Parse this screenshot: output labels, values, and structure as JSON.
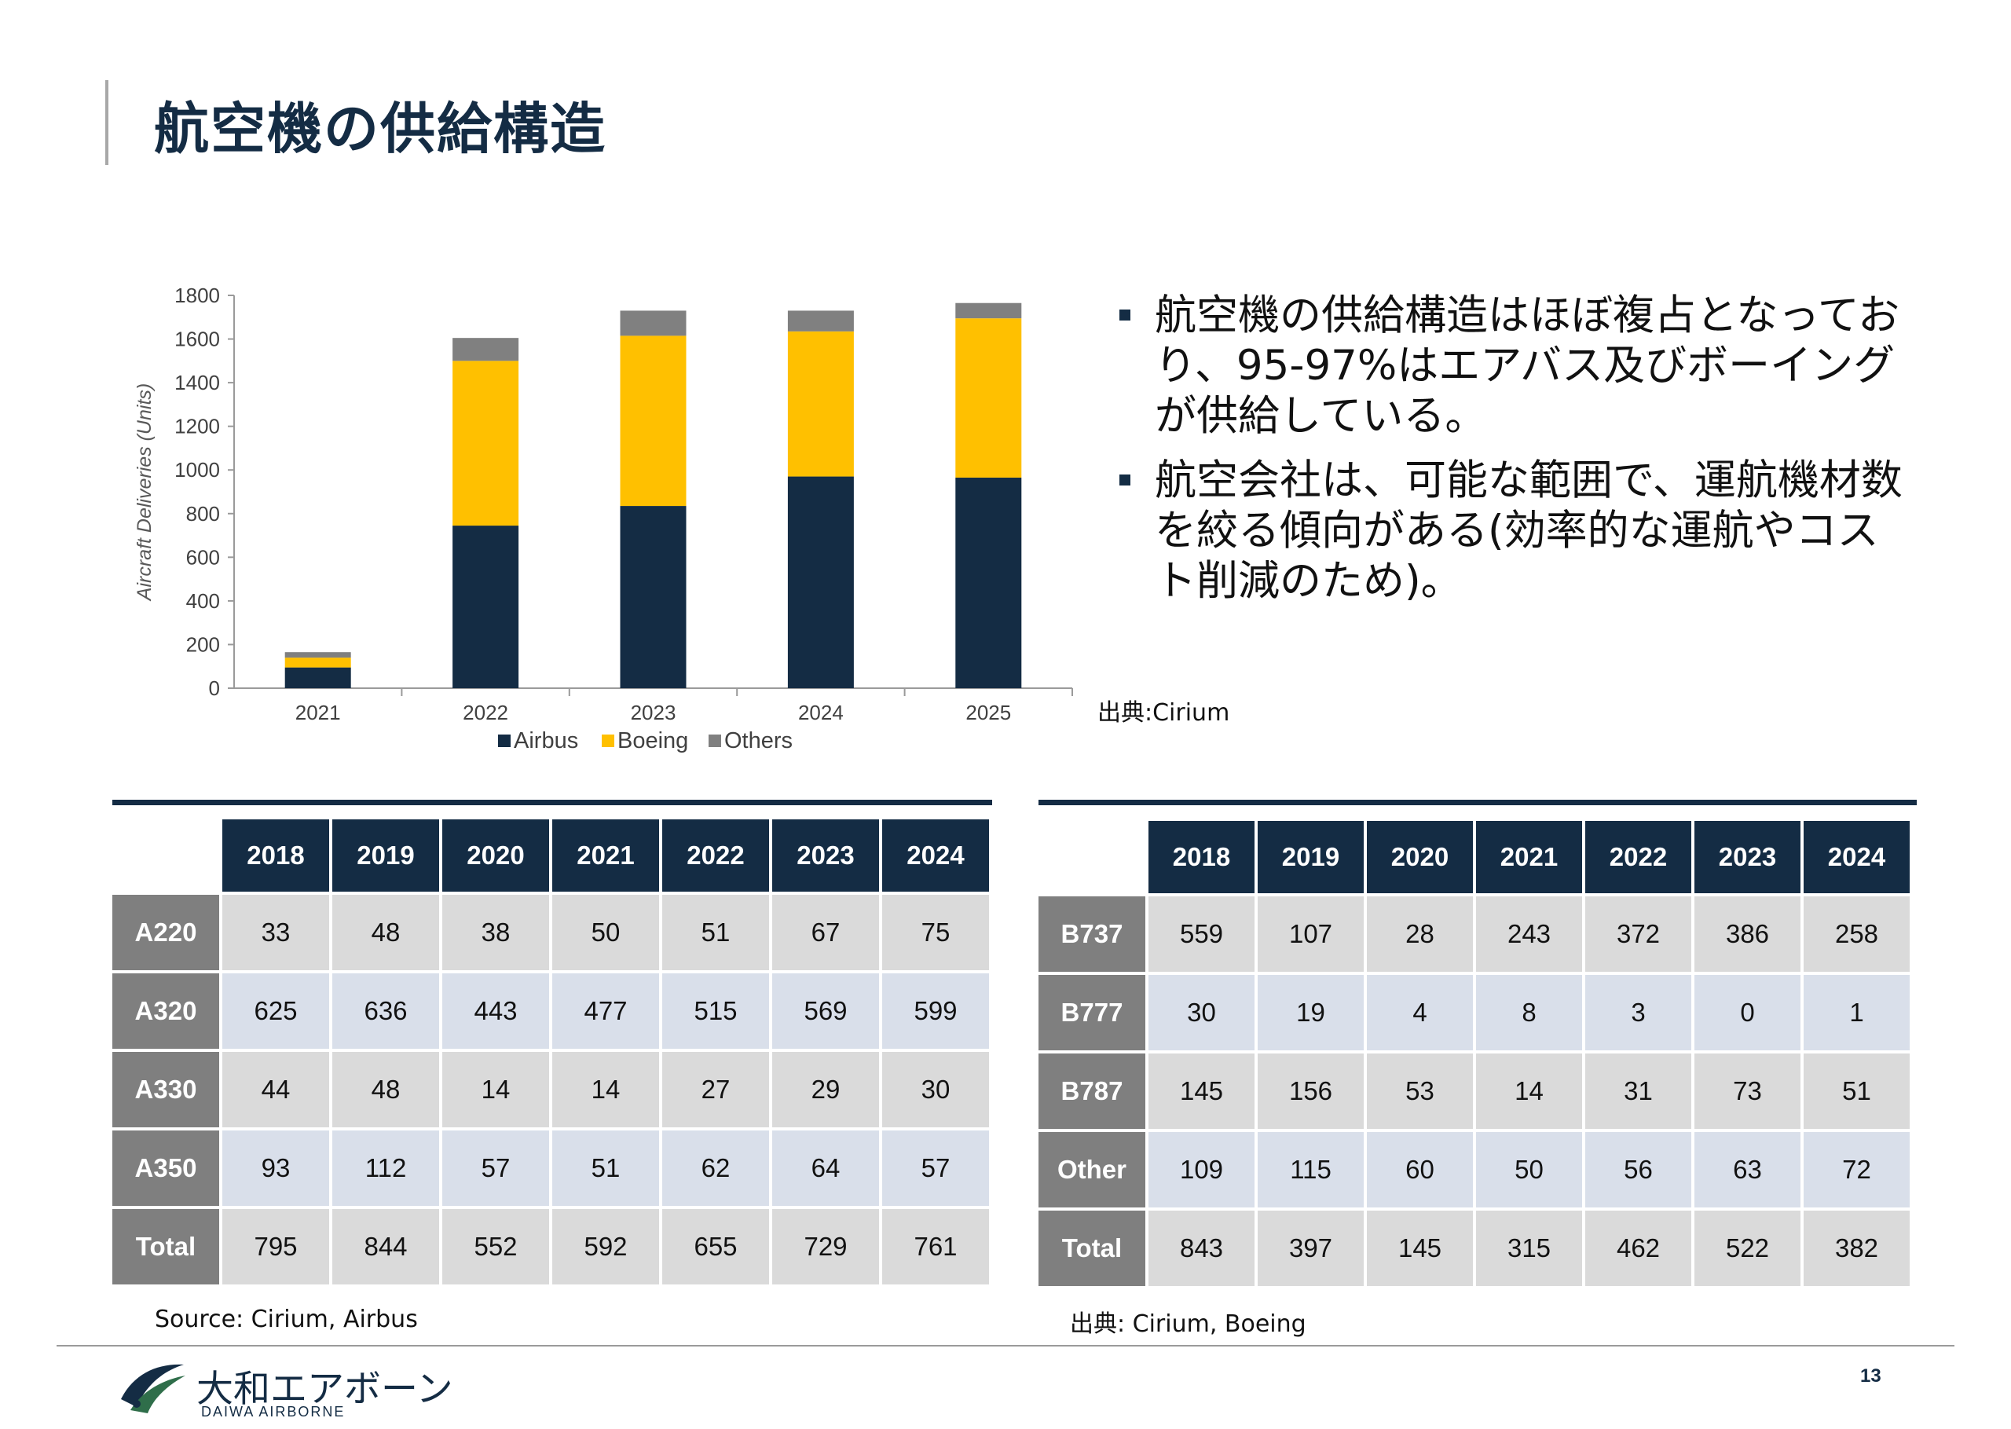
{
  "title": "航空機の供給構造",
  "chart_data": {
    "type": "bar",
    "stacked": true,
    "categories": [
      "2021",
      "2022",
      "2023",
      "2024",
      "2025"
    ],
    "series": [
      {
        "name": "Airbus",
        "values": [
          95,
          745,
          835,
          970,
          965
        ],
        "color": "#142c44"
      },
      {
        "name": "Boeing",
        "values": [
          45,
          755,
          780,
          665,
          730
        ],
        "color": "#ffc000"
      },
      {
        "name": "Others",
        "values": [
          25,
          105,
          115,
          95,
          70
        ],
        "color": "#808080"
      }
    ],
    "ylabel": "Aircraft  Deliveries  (Units)",
    "ylim": [
      0,
      1800
    ],
    "yticks": [
      "0",
      "200",
      "400",
      "600",
      "800",
      "1000",
      "1200",
      "1400",
      "1600",
      "1800"
    ],
    "legend": "bottom",
    "grid": false
  },
  "bullets": [
    "航空機の供給構造はほぼ複占となっており、95-97%はエアバス及びボーイングが供給している。",
    "航空会社は、可能な範囲で、運航機材数を絞る傾向がある(効率的な運航やコスト削減のため)。"
  ],
  "chart_source": "出典:Cirium",
  "airbus_table": {
    "years": [
      "2018",
      "2019",
      "2020",
      "2021",
      "2022",
      "2023",
      "2024"
    ],
    "rows": [
      {
        "label": "A220",
        "values": [
          "33",
          "48",
          "38",
          "50",
          "51",
          "67",
          "75"
        ]
      },
      {
        "label": "A320",
        "values": [
          "625",
          "636",
          "443",
          "477",
          "515",
          "569",
          "599"
        ]
      },
      {
        "label": "A330",
        "values": [
          "44",
          "48",
          "14",
          "14",
          "27",
          "29",
          "30"
        ]
      },
      {
        "label": "A350",
        "values": [
          "93",
          "112",
          "57",
          "51",
          "62",
          "64",
          "57"
        ]
      },
      {
        "label": "Total",
        "values": [
          "795",
          "844",
          "552",
          "592",
          "655",
          "729",
          "761"
        ]
      }
    ],
    "source": "Source: Cirium, Airbus"
  },
  "boeing_table": {
    "years": [
      "2018",
      "2019",
      "2020",
      "2021",
      "2022",
      "2023",
      "2024"
    ],
    "rows": [
      {
        "label": "B737",
        "values": [
          "559",
          "107",
          "28",
          "243",
          "372",
          "386",
          "258"
        ]
      },
      {
        "label": "B777",
        "values": [
          "30",
          "19",
          "4",
          "8",
          "3",
          "0",
          "1"
        ]
      },
      {
        "label": "B787",
        "values": [
          "145",
          "156",
          "53",
          "14",
          "31",
          "73",
          "51"
        ]
      },
      {
        "label": "Other",
        "values": [
          "109",
          "115",
          "60",
          "50",
          "56",
          "63",
          "72"
        ]
      },
      {
        "label": "Total",
        "values": [
          "843",
          "397",
          "145",
          "315",
          "462",
          "522",
          "382"
        ]
      }
    ],
    "source": "出典: Cirium, Boeing"
  },
  "footer": {
    "logo_name": "大和エアボーン",
    "logo_sub": "DAIWA AIRBORNE",
    "logo_icon": "airplane-swoosh-icon",
    "page_number": "13"
  }
}
